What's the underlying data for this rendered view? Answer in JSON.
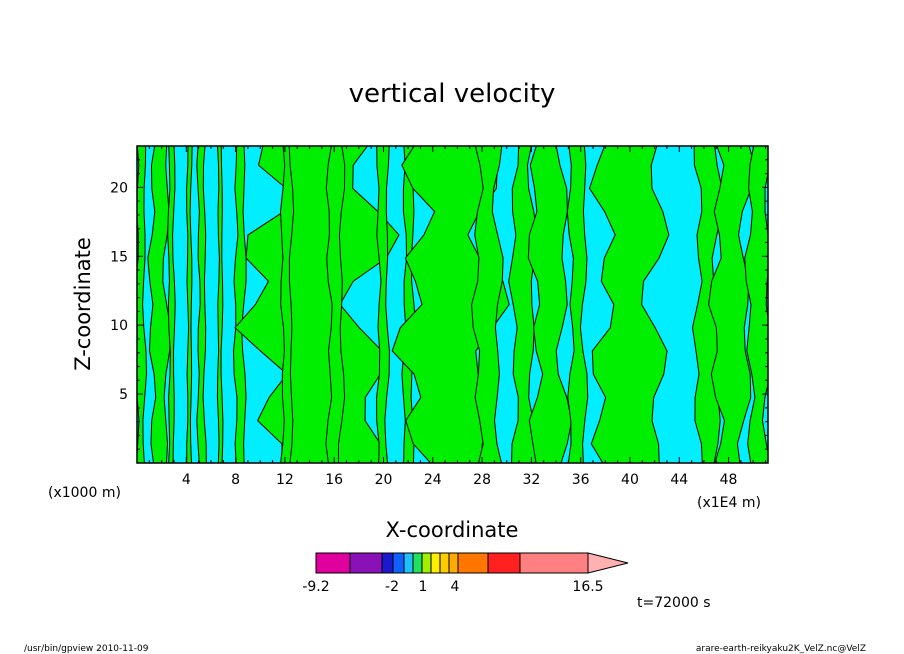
{
  "chart_data": {
    "type": "heatmap",
    "title": "vertical velocity",
    "xlabel": "X-coordinate",
    "ylabel": "Z-coordinate",
    "x_unit_left": "(x1000 m)",
    "x_unit_right": "(x1E4 m)",
    "xlim": [
      0,
      51.2
    ],
    "ylim": [
      0,
      23
    ],
    "x_ticks": [
      4,
      8,
      12,
      16,
      20,
      24,
      28,
      32,
      36,
      40,
      44,
      48
    ],
    "y_ticks": [
      5,
      10,
      15,
      20
    ],
    "x_tick_labels": [
      "4",
      "8",
      "12",
      "16",
      "20",
      "24",
      "28",
      "32",
      "36",
      "40",
      "44",
      "48"
    ],
    "y_tick_labels": [
      "5",
      "10",
      "15",
      "20"
    ],
    "grid": false,
    "colors": {
      "positive": "#00ee00",
      "negative": "#00eeff",
      "contour": "#000000"
    },
    "columns": [
      {
        "x": [
          0,
          0.6
        ]
      },
      {
        "x": [
          1.2,
          2.4
        ]
      },
      {
        "x": [
          2.6,
          3.0
        ]
      },
      {
        "x": [
          4.1,
          4.4
        ]
      },
      {
        "x": [
          5.0,
          5.5
        ]
      },
      {
        "x": [
          6.6,
          6.9
        ]
      },
      {
        "x": [
          8.0,
          8.7
        ]
      },
      {
        "x": [
          10.2,
          18.8
        ]
      },
      {
        "x": [
          11.8,
          12.5
        ]
      },
      {
        "x": [
          15.6,
          16.6
        ]
      },
      {
        "x": [
          19.6,
          20.3
        ]
      },
      {
        "x": [
          21.7,
          22.4
        ]
      },
      {
        "x": [
          22.4,
          28.5
        ]
      },
      {
        "x": [
          27.6,
          29.3
        ]
      },
      {
        "x": [
          30.6,
          32.1
        ]
      },
      {
        "x": [
          32.3,
          34.6
        ]
      },
      {
        "x": [
          35.2,
          36.3
        ]
      },
      {
        "x": [
          37.8,
          42.1
        ]
      },
      {
        "x": [
          45.5,
          47.1
        ]
      },
      {
        "x": [
          47.0,
          49.4
        ]
      },
      {
        "x": [
          49.7,
          51.2
        ]
      }
    ],
    "colorbar": {
      "tick_labels": [
        "-9.2",
        "-2",
        "1",
        "4",
        "16.5"
      ],
      "segments": [
        {
          "color": "#e0009e"
        },
        {
          "color": "#8a10b8"
        },
        {
          "color": "#1a1acc"
        },
        {
          "color": "#1060ff"
        },
        {
          "color": "#20c0ff"
        },
        {
          "color": "#20e060"
        },
        {
          "color": "#a0ee00"
        },
        {
          "color": "#ffee00"
        },
        {
          "color": "#ffcc00"
        },
        {
          "color": "#ffaa00"
        },
        {
          "color": "#ff7700"
        },
        {
          "color": "#ff2020"
        },
        {
          "color": "#ff8080"
        },
        {
          "color": "#ffb0b0"
        }
      ]
    },
    "time_label": "t=72000 s"
  },
  "footer": {
    "left": "/usr/bin/gpview   2010-11-09",
    "right": "arare-earth-reikyaku2K_VelZ.nc@VelZ"
  }
}
